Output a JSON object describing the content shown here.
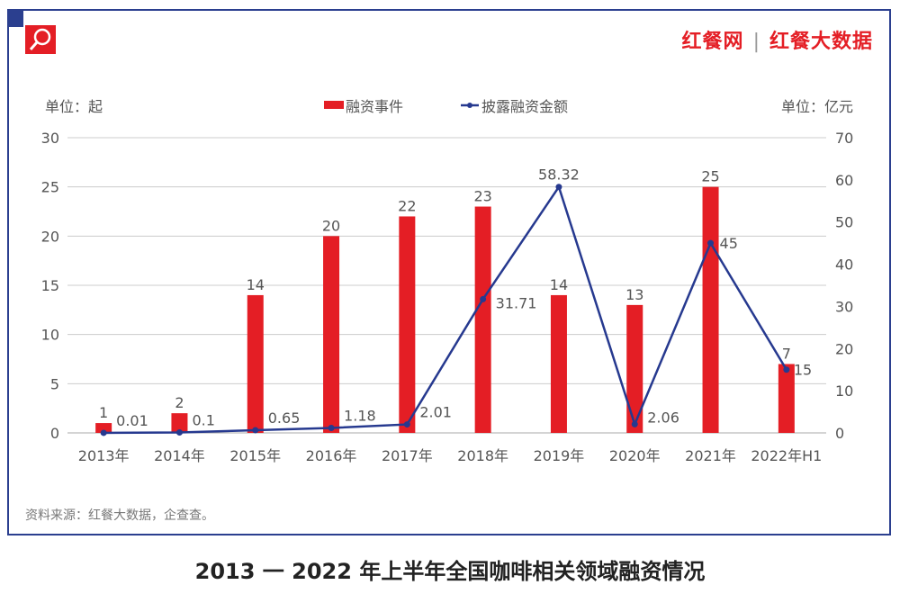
{
  "brand": {
    "left": "红餐网",
    "right": "红餐大数据"
  },
  "source": "资料来源：红餐大数据，企查查。",
  "title": "2013 一 2022 年上半年全国咖啡相关领域融资情况",
  "chart_data": {
    "type": "bar+line",
    "categories": [
      "2013年",
      "2014年",
      "2015年",
      "2016年",
      "2017年",
      "2018年",
      "2019年",
      "2020年",
      "2021年",
      "2022年H1"
    ],
    "series": [
      {
        "name": "融资事件",
        "type": "bar",
        "axis": "left",
        "color": "#e41e25",
        "values": [
          1,
          2,
          14,
          20,
          22,
          23,
          14,
          13,
          25,
          7
        ],
        "labels": [
          "1",
          "2",
          "14",
          "20",
          "22",
          "23",
          "14",
          "13",
          "25",
          "7"
        ]
      },
      {
        "name": "披露融资金额",
        "type": "line",
        "axis": "right",
        "color": "#26398f",
        "values": [
          0.01,
          0.1,
          0.65,
          1.18,
          2.01,
          31.71,
          58.32,
          2.06,
          45,
          15
        ],
        "labels": [
          "0.01",
          "0.1",
          "0.65",
          "1.18",
          "2.01",
          "31.71",
          "58.32",
          "2.06",
          "45",
          "15"
        ]
      }
    ],
    "left_axis": {
      "label": "单位：起",
      "ylim": [
        0,
        30
      ],
      "ticks": [
        0,
        5,
        10,
        15,
        20,
        25,
        30
      ]
    },
    "right_axis": {
      "label": "单位：亿元",
      "ylim": [
        0,
        70
      ],
      "ticks": [
        0,
        10,
        20,
        30,
        40,
        50,
        60,
        70
      ]
    },
    "grid": true,
    "legend": "top-center"
  }
}
